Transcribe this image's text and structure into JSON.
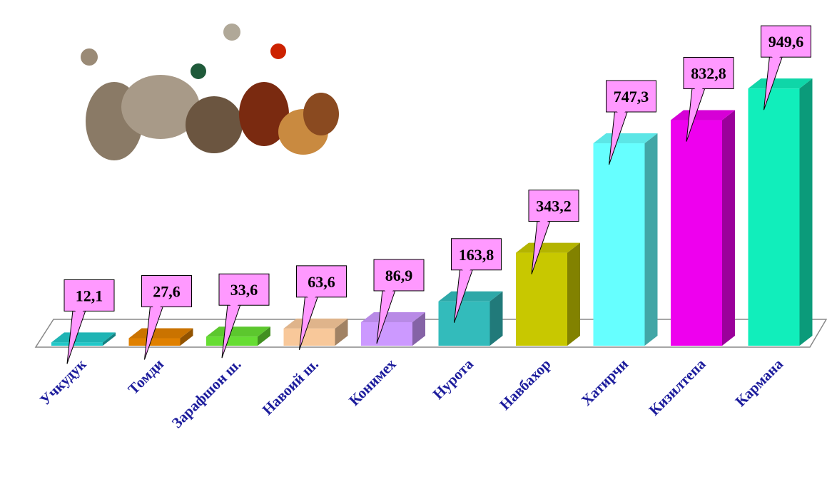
{
  "chart_data": {
    "type": "bar3d",
    "categories": [
      "Учкудук",
      "Томди",
      "Зарафшон ш.",
      "Навоий ш.",
      "Конимех",
      "Нурота",
      "Навбахор",
      "Хатирчи",
      "Кизилтепа",
      "Кармана"
    ],
    "values": [
      12.1,
      27.6,
      33.6,
      63.6,
      86.9,
      163.8,
      343.2,
      747.3,
      832.8,
      949.6
    ],
    "value_labels": [
      "12,1",
      "27,6",
      "33,6",
      "63,6",
      "86,9",
      "163,8",
      "343,2",
      "747,3",
      "832,8",
      "949,6"
    ],
    "colors": [
      "#22c8c8",
      "#e08000",
      "#66dd33",
      "#f8c89a",
      "#cc99ff",
      "#33bbbb",
      "#c8c800",
      "#66ffff",
      "#ee00ee",
      "#11eebb"
    ],
    "label_color": "#ff99ff"
  }
}
